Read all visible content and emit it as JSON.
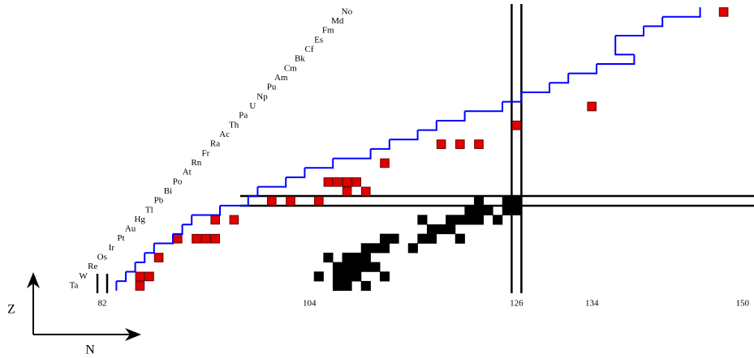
{
  "chart_data": {
    "type": "nuclide",
    "x_label": "N",
    "y_label": "Z",
    "xlim": [
      72,
      151
    ],
    "ylim": [
      72,
      103
    ],
    "xticks": [
      82,
      104,
      126,
      134,
      150
    ],
    "elements": {
      "z": [
        73,
        74,
        75,
        76,
        77,
        78,
        79,
        80,
        81,
        82,
        83,
        84,
        85,
        86,
        87,
        88,
        89,
        90,
        91,
        92,
        93,
        94,
        95,
        96,
        97,
        98,
        99,
        100,
        101,
        102
      ],
      "symbols": [
        "Ta",
        "W",
        "Re",
        "Os",
        "Ir",
        "Pt",
        "Au",
        "Hg",
        "Tl",
        "Pb",
        "Bi",
        "Po",
        "At",
        "Rn",
        "Fr",
        "Ra",
        "Ac",
        "Th",
        "Pa",
        "U",
        "Np",
        "Pu",
        "Am",
        "Cm",
        "Bk",
        "Cf",
        "Es",
        "Fm",
        "Md",
        "No"
      ]
    },
    "magic_n": [
      82,
      126
    ],
    "magic_z": [
      82
    ],
    "series": [
      {
        "color": "#e00000",
        "x": [
          86,
          87,
          86,
          88,
          90,
          92,
          93,
          94,
          94,
          96,
          100,
          102,
          105,
          106,
          107,
          108,
          109,
          108,
          110,
          112,
          118,
          120,
          122,
          126,
          134,
          148
        ],
        "y": [
          74,
          74,
          73,
          76,
          78,
          78,
          78,
          78,
          80,
          80,
          82,
          82,
          82,
          84,
          84,
          84,
          84,
          83,
          83,
          86,
          88,
          88,
          88,
          90,
          92,
          102
        ]
      },
      {
        "color": "#000000",
        "x": [
          107,
          108,
          110,
          105,
          107,
          108,
          109,
          112,
          107,
          108,
          109,
          110,
          111,
          106,
          108,
          109,
          110,
          110,
          111,
          112,
          115,
          112,
          113,
          116,
          117,
          120,
          117,
          118,
          119,
          116,
          119,
          120,
          121,
          122,
          124,
          121,
          122,
          123,
          125,
          126,
          122,
          125,
          126
        ],
        "y": [
          73,
          73,
          73,
          74,
          74,
          74,
          74,
          74,
          75,
          75,
          75,
          75,
          75,
          76,
          76,
          76,
          76,
          77,
          77,
          77,
          77,
          78,
          78,
          78,
          78,
          78,
          79,
          79,
          79,
          80,
          80,
          80,
          80,
          80,
          80,
          81,
          81,
          81,
          81,
          81,
          82,
          82,
          82
        ]
      }
    ],
    "drip_line": {
      "color": "#0000ff",
      "z": [
        73,
        74,
        75,
        76,
        77,
        78,
        79,
        80,
        81,
        82,
        83,
        84,
        85,
        86,
        87,
        88,
        89,
        90,
        91,
        92,
        93,
        94,
        95,
        96,
        97,
        98,
        99,
        100,
        101,
        102
      ],
      "n": [
        83.5,
        84.5,
        85.5,
        86.5,
        87.5,
        89.5,
        90.5,
        91.5,
        94.5,
        97.5,
        98.5,
        101.5,
        103.5,
        106.5,
        110.5,
        112.5,
        115.5,
        117.5,
        120.5,
        124.5,
        126.5,
        129.5,
        131.5,
        134.5,
        138.5,
        136.5,
        136.5,
        139.5,
        141.5,
        145.5
      ]
    }
  }
}
